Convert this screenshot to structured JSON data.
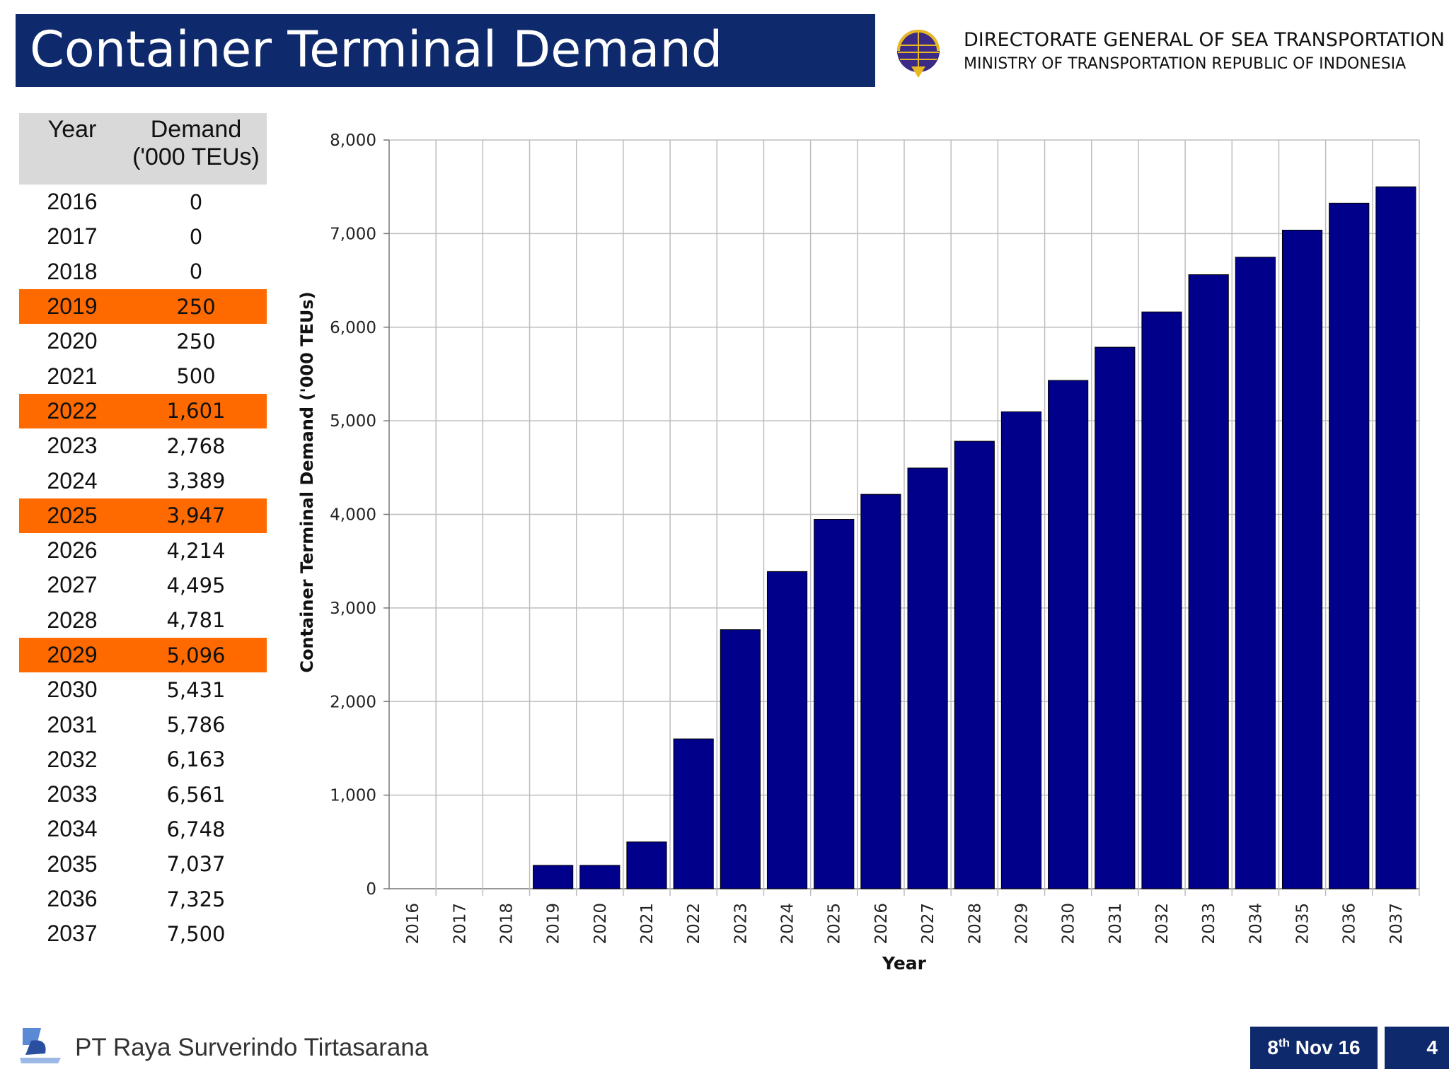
{
  "header": {
    "title": "Container Terminal Demand",
    "org_line1": "DIRECTORATE GENERAL OF SEA TRANSPORTATION",
    "org_line2": "MINISTRY OF TRANSPORTATION REPUBLIC OF INDONESIA"
  },
  "table": {
    "col_year": "Year",
    "col_demand_1": "Demand",
    "col_demand_2": "('000 TEUs)",
    "highlight_color": "#ff6a00",
    "rows": [
      {
        "year": "2016",
        "demand": "0",
        "highlight": false
      },
      {
        "year": "2017",
        "demand": "0",
        "highlight": false
      },
      {
        "year": "2018",
        "demand": "0",
        "highlight": false
      },
      {
        "year": "2019",
        "demand": "250",
        "highlight": true
      },
      {
        "year": "2020",
        "demand": "250",
        "highlight": false
      },
      {
        "year": "2021",
        "demand": "500",
        "highlight": false
      },
      {
        "year": "2022",
        "demand": "1,601",
        "highlight": true
      },
      {
        "year": "2023",
        "demand": "2,768",
        "highlight": false
      },
      {
        "year": "2024",
        "demand": "3,389",
        "highlight": false
      },
      {
        "year": "2025",
        "demand": "3,947",
        "highlight": true
      },
      {
        "year": "2026",
        "demand": "4,214",
        "highlight": false
      },
      {
        "year": "2027",
        "demand": "4,495",
        "highlight": false
      },
      {
        "year": "2028",
        "demand": "4,781",
        "highlight": false
      },
      {
        "year": "2029",
        "demand": "5,096",
        "highlight": true
      },
      {
        "year": "2030",
        "demand": "5,431",
        "highlight": false
      },
      {
        "year": "2031",
        "demand": "5,786",
        "highlight": false
      },
      {
        "year": "2032",
        "demand": "6,163",
        "highlight": false
      },
      {
        "year": "2033",
        "demand": "6,561",
        "highlight": false
      },
      {
        "year": "2034",
        "demand": "6,748",
        "highlight": false
      },
      {
        "year": "2035",
        "demand": "7,037",
        "highlight": false
      },
      {
        "year": "2036",
        "demand": "7,325",
        "highlight": false
      },
      {
        "year": "2037",
        "demand": "7,500",
        "highlight": false
      }
    ]
  },
  "chart_data": {
    "type": "bar",
    "title": "",
    "xlabel": "Year",
    "ylabel": "Container Terminal Demand ('000 TEUs)",
    "categories": [
      "2016",
      "2017",
      "2018",
      "2019",
      "2020",
      "2021",
      "2022",
      "2023",
      "2024",
      "2025",
      "2026",
      "2027",
      "2028",
      "2029",
      "2030",
      "2031",
      "2032",
      "2033",
      "2034",
      "2035",
      "2036",
      "2037"
    ],
    "values": [
      0,
      0,
      0,
      250,
      250,
      500,
      1601,
      2768,
      3389,
      3947,
      4214,
      4495,
      4781,
      5096,
      5431,
      5786,
      6163,
      6561,
      6748,
      7037,
      7325,
      7500
    ],
    "ylim": [
      0,
      8000
    ],
    "yticks": [
      0,
      1000,
      2000,
      3000,
      4000,
      5000,
      6000,
      7000,
      8000
    ],
    "ytick_labels": [
      "0",
      "1,000",
      "2,000",
      "3,000",
      "4,000",
      "5,000",
      "6,000",
      "7,000",
      "8,000"
    ],
    "grid": true,
    "bar_color": "#00008b"
  },
  "footer": {
    "company": "PT Raya Surverindo Tirtasarana",
    "date_day": "8",
    "date_suffix": "th",
    "date_rest": " Nov 16",
    "page": "4"
  }
}
